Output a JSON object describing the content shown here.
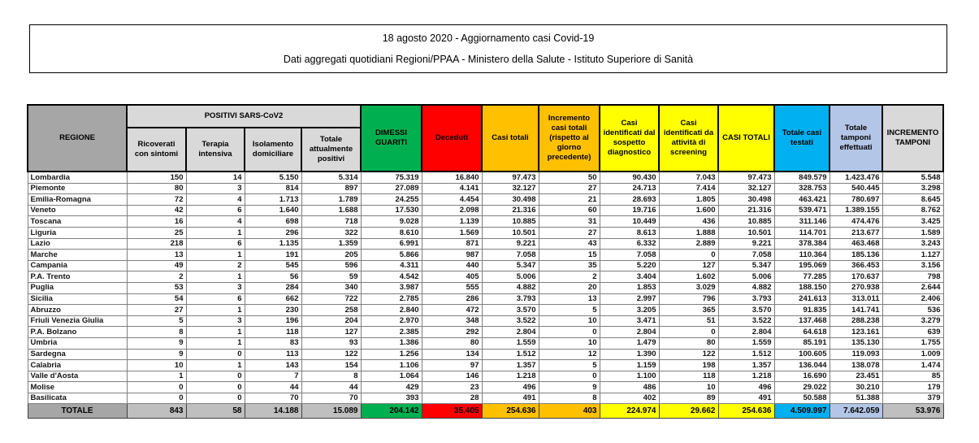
{
  "title": {
    "line1": "18 agosto 2020 - Aggiornamento casi Covid-19",
    "line2": "Dati aggregati quotidiani Regioni/PPAA - Ministero della Salute - Istituto Superiore di Sanità"
  },
  "table": {
    "group_header": "POSITIVI SARS-CoV2",
    "columns": [
      "REGIONE",
      "Ricoverati con sintomi",
      "Terapia intensiva",
      "Isolamento domiciliare",
      "Totale attualmente positivi",
      "DIMESSI GUARITI",
      "Deceduti",
      "Casi totali",
      "Incremento casi totali (rispetto al giorno precedente)",
      "Casi identificati dal sospetto diagnostico",
      "Casi identificati da attività di screening",
      "CASI TOTALI",
      "Totale casi testati",
      "Totale tamponi effettuati",
      "INCREMENTO TAMPONI"
    ],
    "rows": [
      {
        "region": "Lombardia",
        "values": [
          "150",
          "14",
          "5.150",
          "5.314",
          "75.319",
          "16.840",
          "97.473",
          "50",
          "90.430",
          "7.043",
          "97.473",
          "849.579",
          "1.423.476",
          "5.548"
        ]
      },
      {
        "region": "Piemonte",
        "values": [
          "80",
          "3",
          "814",
          "897",
          "27.089",
          "4.141",
          "32.127",
          "27",
          "24.713",
          "7.414",
          "32.127",
          "328.753",
          "540.445",
          "3.298"
        ]
      },
      {
        "region": "Emilia-Romagna",
        "values": [
          "72",
          "4",
          "1.713",
          "1.789",
          "24.255",
          "4.454",
          "30.498",
          "21",
          "28.693",
          "1.805",
          "30.498",
          "463.421",
          "780.697",
          "8.645"
        ]
      },
      {
        "region": "Veneto",
        "values": [
          "42",
          "6",
          "1.640",
          "1.688",
          "17.530",
          "2.098",
          "21.316",
          "60",
          "19.716",
          "1.600",
          "21.316",
          "539.471",
          "1.389.155",
          "8.762"
        ]
      },
      {
        "region": "Toscana",
        "values": [
          "16",
          "4",
          "698",
          "718",
          "9.028",
          "1.139",
          "10.885",
          "31",
          "10.449",
          "436",
          "10.885",
          "311.146",
          "474.476",
          "3.425"
        ]
      },
      {
        "region": "Liguria",
        "values": [
          "25",
          "1",
          "296",
          "322",
          "8.610",
          "1.569",
          "10.501",
          "27",
          "8.613",
          "1.888",
          "10.501",
          "114.701",
          "213.677",
          "1.589"
        ]
      },
      {
        "region": "Lazio",
        "values": [
          "218",
          "6",
          "1.135",
          "1.359",
          "6.991",
          "871",
          "9.221",
          "43",
          "6.332",
          "2.889",
          "9.221",
          "378.384",
          "463.468",
          "3.243"
        ]
      },
      {
        "region": "Marche",
        "values": [
          "13",
          "1",
          "191",
          "205",
          "5.866",
          "987",
          "7.058",
          "15",
          "7.058",
          "0",
          "7.058",
          "110.364",
          "185.136",
          "1.127"
        ]
      },
      {
        "region": "Campania",
        "values": [
          "49",
          "2",
          "545",
          "596",
          "4.311",
          "440",
          "5.347",
          "35",
          "5.220",
          "127",
          "5.347",
          "195.069",
          "366.453",
          "3.156"
        ]
      },
      {
        "region": "P.A. Trento",
        "values": [
          "2",
          "1",
          "56",
          "59",
          "4.542",
          "405",
          "5.006",
          "2",
          "3.404",
          "1.602",
          "5.006",
          "77.285",
          "170.637",
          "798"
        ]
      },
      {
        "region": "Puglia",
        "values": [
          "53",
          "3",
          "284",
          "340",
          "3.987",
          "555",
          "4.882",
          "20",
          "1.853",
          "3.029",
          "4.882",
          "188.150",
          "270.938",
          "2.644"
        ]
      },
      {
        "region": "Sicilia",
        "values": [
          "54",
          "6",
          "662",
          "722",
          "2.785",
          "286",
          "3.793",
          "13",
          "2.997",
          "796",
          "3.793",
          "241.613",
          "313.011",
          "2.406"
        ]
      },
      {
        "region": "Abruzzo",
        "values": [
          "27",
          "1",
          "230",
          "258",
          "2.840",
          "472",
          "3.570",
          "5",
          "3.205",
          "365",
          "3.570",
          "91.835",
          "141.741",
          "536"
        ]
      },
      {
        "region": "Friuli Venezia Giulia",
        "values": [
          "5",
          "3",
          "196",
          "204",
          "2.970",
          "348",
          "3.522",
          "10",
          "3.471",
          "51",
          "3.522",
          "137.468",
          "288.238",
          "3.279"
        ]
      },
      {
        "region": "P.A. Bolzano",
        "values": [
          "8",
          "1",
          "118",
          "127",
          "2.385",
          "292",
          "2.804",
          "0",
          "2.804",
          "0",
          "2.804",
          "64.618",
          "123.161",
          "639"
        ]
      },
      {
        "region": "Umbria",
        "values": [
          "9",
          "1",
          "83",
          "93",
          "1.386",
          "80",
          "1.559",
          "10",
          "1.479",
          "80",
          "1.559",
          "85.191",
          "135.130",
          "1.755"
        ]
      },
      {
        "region": "Sardegna",
        "values": [
          "9",
          "0",
          "113",
          "122",
          "1.256",
          "134",
          "1.512",
          "12",
          "1.390",
          "122",
          "1.512",
          "100.605",
          "119.093",
          "1.009"
        ]
      },
      {
        "region": "Calabria",
        "values": [
          "10",
          "1",
          "143",
          "154",
          "1.106",
          "97",
          "1.357",
          "5",
          "1.159",
          "198",
          "1.357",
          "136.044",
          "138.078",
          "1.474"
        ]
      },
      {
        "region": "Valle d'Aosta",
        "values": [
          "1",
          "0",
          "7",
          "8",
          "1.064",
          "146",
          "1.218",
          "0",
          "1.100",
          "118",
          "1.218",
          "16.690",
          "23.451",
          "85"
        ]
      },
      {
        "region": "Molise",
        "values": [
          "0",
          "0",
          "44",
          "44",
          "429",
          "23",
          "496",
          "9",
          "486",
          "10",
          "496",
          "29.022",
          "30.210",
          "179"
        ]
      },
      {
        "region": "Basilicata",
        "values": [
          "0",
          "0",
          "70",
          "70",
          "393",
          "28",
          "491",
          "8",
          "402",
          "89",
          "491",
          "50.588",
          "51.388",
          "379"
        ]
      }
    ],
    "total_row": {
      "label": "TOTALE",
      "values": [
        "843",
        "58",
        "14.188",
        "15.089",
        "204.142",
        "35.405",
        "254.636",
        "403",
        "224.974",
        "29.662",
        "254.636",
        "4.509.997",
        "7.642.059",
        "53.976"
      ]
    }
  },
  "colors": {
    "header_region_bg": "#a6a6a6",
    "header_positivi_bg": "#d9d9d9",
    "guariti_green": "#00b050",
    "deceduti_red": "#ff0000",
    "casi_totali_orange": "#ffc000",
    "casi_identificati_yellow": "#ffff00",
    "casi_testati_cyan": "#00b0f0",
    "tamponi_lavender": "#b4c6e7",
    "incremento_tamponi_gray": "#d9d9d9",
    "totale_row_gray": "#bfbfbf"
  }
}
